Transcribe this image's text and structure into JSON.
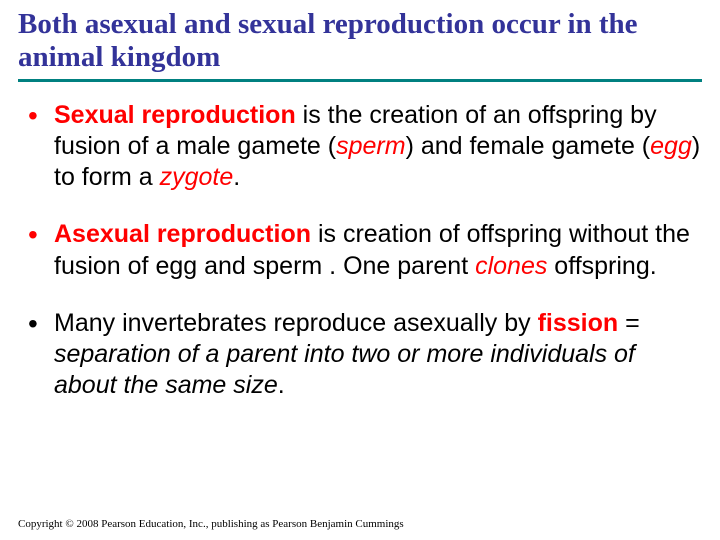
{
  "title": "Both asexual and sexual reproduction occur in the animal kingdom",
  "colors": {
    "title": "#333399",
    "divider": "#008080",
    "accent": "#ff0000",
    "text": "#000000",
    "background": "#ffffff"
  },
  "typography": {
    "title_font": "Times New Roman",
    "title_size_pt": 22,
    "title_weight": "bold",
    "body_font": "Arial",
    "body_size_pt": 19
  },
  "bullets": [
    {
      "bullet_color": "#ff0000",
      "runs": [
        {
          "text": "Sexual reproduction",
          "style": "red-bold"
        },
        {
          "text": " is the creation of an offspring by fusion of a male gamete (",
          "style": "plain"
        },
        {
          "text": "sperm",
          "style": "red-italic"
        },
        {
          "text": ") and female gamete (",
          "style": "plain"
        },
        {
          "text": "egg",
          "style": "red-italic"
        },
        {
          "text": ") to form a ",
          "style": "plain"
        },
        {
          "text": "zygote",
          "style": "red-italic"
        },
        {
          "text": ".",
          "style": "plain"
        }
      ]
    },
    {
      "bullet_color": "#ff0000",
      "runs": [
        {
          "text": "Asexual reproduction",
          "style": "red-bold"
        },
        {
          "text": " is creation of offspring without the fusion of egg and sperm .  One parent ",
          "style": "plain"
        },
        {
          "text": "clones",
          "style": "red-italic"
        },
        {
          "text": " offspring.",
          "style": "plain"
        }
      ]
    },
    {
      "bullet_color": "#000000",
      "runs": [
        {
          "text": "Many invertebrates reproduce asexually by ",
          "style": "plain"
        },
        {
          "text": "fission",
          "style": "red-bold"
        },
        {
          "text": " = ",
          "style": "plain"
        },
        {
          "text": "separation of a parent into two or more individuals of about the same size",
          "style": "italic"
        },
        {
          "text": ".",
          "style": "plain"
        }
      ]
    }
  ],
  "footer": "Copyright © 2008 Pearson Education, Inc., publishing as Pearson Benjamin Cummings"
}
